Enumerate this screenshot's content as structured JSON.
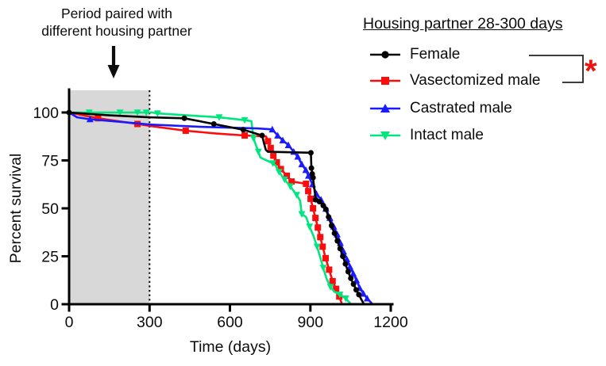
{
  "annotation": {
    "line1": "Period paired with",
    "line2": "different housing partner"
  },
  "legend": {
    "title": "Housing partner 28-300 days",
    "entries": [
      {
        "label": "Female"
      },
      {
        "label": "Vasectomized male"
      },
      {
        "label": "Castrated male"
      },
      {
        "label": "Intact male"
      }
    ],
    "significance": "*",
    "significance_color": "#ee1111",
    "bracket_connects": [
      "Female",
      "Vasectomized male"
    ]
  },
  "chart_data": {
    "type": "line",
    "subtype": "kaplan-meier-survival",
    "xlabel": "Time (days)",
    "ylabel": "Percent survival",
    "xlim": [
      0,
      1200
    ],
    "ylim": [
      0,
      100
    ],
    "x_ticks": [
      "0",
      "300",
      "600",
      "900",
      "1200"
    ],
    "x_tick_values": [
      0,
      300,
      600,
      900,
      1200
    ],
    "y_ticks": [
      "0",
      "25",
      "50",
      "75",
      "100"
    ],
    "y_tick_values": [
      0,
      25,
      50,
      75,
      100
    ],
    "grid": false,
    "shaded_region": {
      "x0": 0,
      "x1": 300,
      "color": "#d8d8d8"
    },
    "dotted_line_x": 300,
    "series": [
      {
        "id": "vasectomized-male",
        "name": "Vasectomized male",
        "color": "#fb0d0d",
        "marker": "square",
        "points": [
          [
            0,
            100
          ],
          [
            108,
            97
          ],
          [
            255,
            94
          ],
          [
            300,
            93
          ],
          [
            435,
            90.5
          ],
          [
            550,
            89
          ],
          [
            655,
            88
          ],
          [
            735,
            87.5
          ],
          [
            742,
            85
          ],
          [
            752,
            81.5
          ],
          [
            762,
            77.5
          ],
          [
            775,
            74
          ],
          [
            790,
            70.5
          ],
          [
            812,
            67
          ],
          [
            830,
            64
          ],
          [
            884,
            62.8
          ],
          [
            892,
            59
          ],
          [
            901,
            55
          ],
          [
            910,
            50
          ],
          [
            919,
            45
          ],
          [
            928,
            40
          ],
          [
            937,
            35
          ],
          [
            946,
            30
          ],
          [
            957,
            24
          ],
          [
            970,
            18
          ],
          [
            983,
            12
          ],
          [
            996,
            8
          ],
          [
            1008,
            4
          ],
          [
            1018,
            0
          ]
        ],
        "markers": [
          [
            108,
            97
          ],
          [
            255,
            94
          ],
          [
            435,
            90.5
          ],
          [
            655,
            88
          ],
          [
            742,
            85
          ],
          [
            752,
            81.5
          ],
          [
            762,
            77.5
          ],
          [
            775,
            74
          ],
          [
            790,
            70.5
          ],
          [
            812,
            67
          ],
          [
            830,
            64
          ],
          [
            884,
            62.8
          ],
          [
            892,
            59
          ],
          [
            901,
            55
          ],
          [
            910,
            50
          ],
          [
            919,
            45
          ],
          [
            928,
            40
          ],
          [
            937,
            35
          ],
          [
            946,
            30
          ],
          [
            957,
            24
          ],
          [
            970,
            18
          ],
          [
            983,
            12
          ],
          [
            996,
            8
          ],
          [
            1008,
            4
          ]
        ]
      },
      {
        "id": "intact-male",
        "name": "Intact male",
        "color": "#00e57e",
        "marker": "triangle-down",
        "points": [
          [
            0,
            100
          ],
          [
            310,
            100
          ],
          [
            330,
            99.5
          ],
          [
            560,
            97.5
          ],
          [
            655,
            96
          ],
          [
            680,
            95.5
          ],
          [
            688,
            86.5
          ],
          [
            697,
            83
          ],
          [
            706,
            79.5
          ],
          [
            714,
            76.5
          ],
          [
            760,
            73.5
          ],
          [
            770,
            72.5
          ],
          [
            783,
            69
          ],
          [
            804,
            65
          ],
          [
            825,
            61.5
          ],
          [
            849,
            57
          ],
          [
            862,
            54
          ],
          [
            868,
            47
          ],
          [
            884,
            45.5
          ],
          [
            897,
            40.5
          ],
          [
            912,
            35.5
          ],
          [
            925,
            30
          ],
          [
            937,
            24.5
          ],
          [
            948,
            19
          ],
          [
            960,
            13.5
          ],
          [
            975,
            9
          ],
          [
            990,
            6.5
          ],
          [
            1010,
            5
          ],
          [
            1032,
            3
          ],
          [
            1052,
            0
          ]
        ],
        "markers": [
          [
            75,
            100
          ],
          [
            190,
            100
          ],
          [
            255,
            100
          ],
          [
            288,
            100
          ],
          [
            330,
            99.5
          ],
          [
            560,
            97.5
          ],
          [
            655,
            96
          ],
          [
            688,
            86.5
          ],
          [
            706,
            79.5
          ],
          [
            760,
            73.5
          ],
          [
            783,
            69
          ],
          [
            804,
            65
          ],
          [
            825,
            61.5
          ],
          [
            849,
            57
          ],
          [
            868,
            47
          ],
          [
            897,
            40.5
          ],
          [
            925,
            30
          ],
          [
            948,
            19
          ],
          [
            975,
            9
          ],
          [
            1010,
            5
          ],
          [
            1032,
            3
          ]
        ]
      },
      {
        "id": "castrated-male",
        "name": "Castrated male",
        "color": "#1a1aff",
        "marker": "triangle-up",
        "points": [
          [
            0,
            100
          ],
          [
            30,
            97.5
          ],
          [
            78,
            96.5
          ],
          [
            200,
            95
          ],
          [
            300,
            93.7
          ],
          [
            500,
            92.5
          ],
          [
            700,
            91.7
          ],
          [
            758,
            91.2
          ],
          [
            778,
            88
          ],
          [
            797,
            85.5
          ],
          [
            818,
            83
          ],
          [
            838,
            79.5
          ],
          [
            853,
            77
          ],
          [
            868,
            73
          ],
          [
            883,
            70
          ],
          [
            893,
            67
          ],
          [
            908,
            62.5
          ],
          [
            923,
            57.5
          ],
          [
            940,
            54.5
          ],
          [
            958,
            49.8
          ],
          [
            973,
            45
          ],
          [
            987,
            40.5
          ],
          [
            1000,
            36.5
          ],
          [
            1012,
            32
          ],
          [
            1024,
            27.5
          ],
          [
            1036,
            23.5
          ],
          [
            1048,
            19.5
          ],
          [
            1060,
            16
          ],
          [
            1072,
            12.5
          ],
          [
            1084,
            8.5
          ],
          [
            1098,
            5.5
          ],
          [
            1112,
            3
          ],
          [
            1132,
            0
          ]
        ],
        "markers": [
          [
            78,
            96.5
          ],
          [
            758,
            91.2
          ],
          [
            778,
            88
          ],
          [
            797,
            85.5
          ],
          [
            818,
            83
          ],
          [
            838,
            79.5
          ],
          [
            853,
            77
          ],
          [
            868,
            73
          ],
          [
            883,
            70
          ],
          [
            893,
            67
          ],
          [
            908,
            62.5
          ],
          [
            923,
            57.5
          ],
          [
            940,
            54.5
          ],
          [
            958,
            49.8
          ],
          [
            973,
            45
          ],
          [
            987,
            40.5
          ],
          [
            1000,
            36.5
          ],
          [
            1012,
            32
          ],
          [
            1024,
            27.5
          ],
          [
            1036,
            23.5
          ],
          [
            1048,
            19.5
          ],
          [
            1060,
            16
          ],
          [
            1072,
            12.5
          ],
          [
            1084,
            8.5
          ],
          [
            1098,
            5.5
          ],
          [
            1112,
            3
          ]
        ]
      },
      {
        "id": "female",
        "name": "Female",
        "color": "#000000",
        "marker": "circle",
        "points": [
          [
            0,
            100
          ],
          [
            150,
            98.5
          ],
          [
            300,
            97.5
          ],
          [
            430,
            97
          ],
          [
            540,
            94
          ],
          [
            650,
            91
          ],
          [
            720,
            88
          ],
          [
            727,
            84
          ],
          [
            734,
            80.5
          ],
          [
            742,
            79.5
          ],
          [
            902,
            79
          ],
          [
            904,
            71
          ],
          [
            907,
            68
          ],
          [
            910,
            66
          ],
          [
            920,
            54.5
          ],
          [
            934,
            53.5
          ],
          [
            948,
            51.5
          ],
          [
            958,
            49.5
          ],
          [
            968,
            45.5
          ],
          [
            979,
            41
          ],
          [
            990,
            37
          ],
          [
            1001,
            33
          ],
          [
            1011,
            29
          ],
          [
            1021,
            25
          ],
          [
            1031,
            21
          ],
          [
            1041,
            17
          ],
          [
            1051,
            13.5
          ],
          [
            1061,
            10.5
          ],
          [
            1071,
            7.5
          ],
          [
            1081,
            5
          ],
          [
            1090,
            2.5
          ],
          [
            1100,
            0
          ]
        ],
        "markers": [
          [
            0,
            100
          ],
          [
            430,
            97
          ],
          [
            540,
            94
          ],
          [
            650,
            91
          ],
          [
            720,
            88
          ],
          [
            902,
            79
          ],
          [
            904,
            71
          ],
          [
            907,
            68
          ],
          [
            910,
            66
          ],
          [
            920,
            54.5
          ],
          [
            934,
            53.5
          ],
          [
            948,
            51.5
          ],
          [
            958,
            49.5
          ],
          [
            968,
            45.5
          ],
          [
            979,
            41
          ],
          [
            990,
            37
          ],
          [
            1001,
            33
          ],
          [
            1011,
            29
          ],
          [
            1021,
            25
          ],
          [
            1031,
            21
          ],
          [
            1041,
            17
          ],
          [
            1051,
            13.5
          ],
          [
            1061,
            10.5
          ],
          [
            1071,
            7.5
          ],
          [
            1081,
            5
          ]
        ]
      }
    ]
  }
}
